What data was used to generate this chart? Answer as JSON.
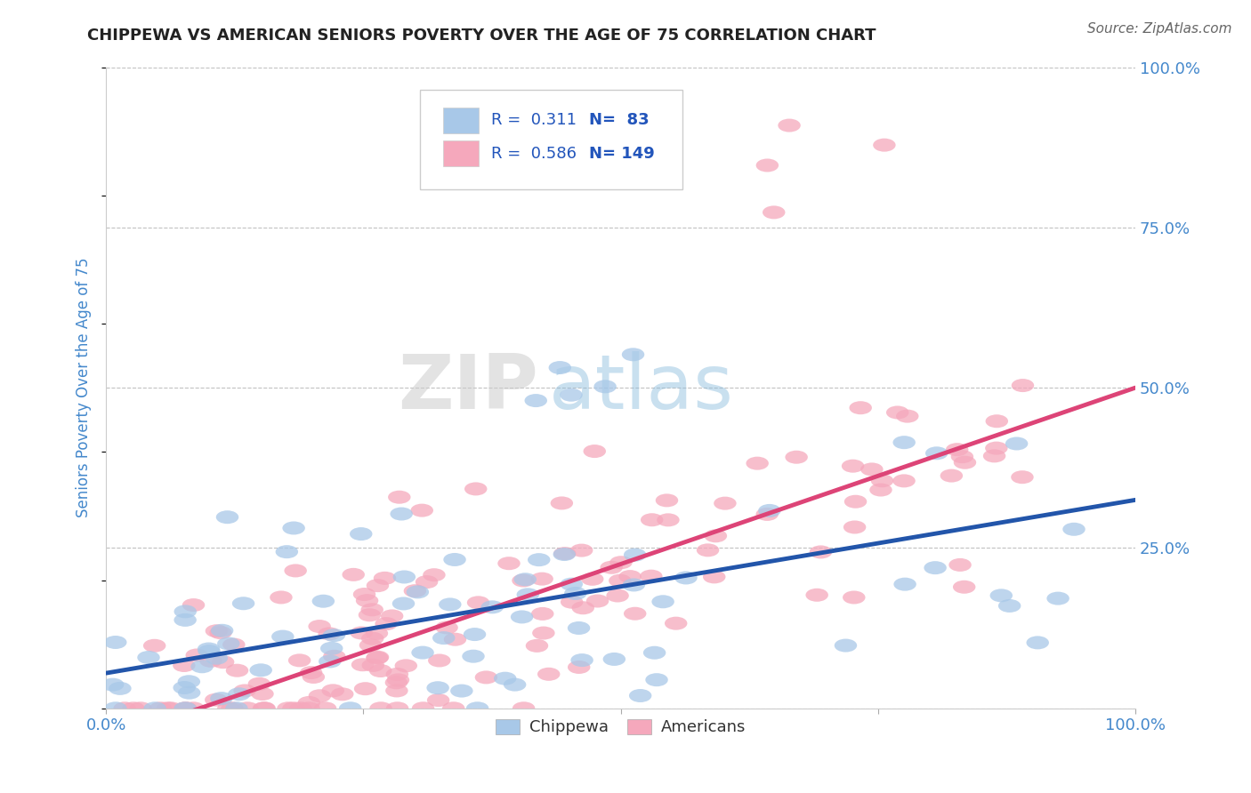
{
  "title": "CHIPPEWA VS AMERICAN SENIORS POVERTY OVER THE AGE OF 75 CORRELATION CHART",
  "source": "Source: ZipAtlas.com",
  "ylabel": "Seniors Poverty Over the Age of 75",
  "chippewa_R": 0.311,
  "chippewa_N": 83,
  "americans_R": 0.586,
  "americans_N": 149,
  "chippewa_color": "#a8c8e8",
  "americans_color": "#f5a8bc",
  "chippewa_line_color": "#2255aa",
  "americans_line_color": "#dd4477",
  "background_color": "#ffffff",
  "title_color": "#222222",
  "axis_label_color": "#4488cc",
  "legend_text_color": "#2255bb",
  "watermark_zip_color": "#cccccc",
  "watermark_atlas_color": "#88bbdd",
  "xlim": [
    0,
    1
  ],
  "ylim": [
    0,
    1
  ],
  "xticks": [
    0,
    0.25,
    0.5,
    0.75,
    1.0
  ],
  "yticks": [
    0.0,
    0.25,
    0.5,
    0.75,
    1.0
  ],
  "xticklabels": [
    "0.0%",
    "",
    "",
    "",
    "100.0%"
  ],
  "yticklabels": [
    "",
    "25.0%",
    "50.0%",
    "75.0%",
    "100.0%"
  ],
  "grid_color": "#bbbbbb",
  "grid_style": "--",
  "chippewa_line_intercept": 0.055,
  "chippewa_line_slope": 0.27,
  "americans_line_intercept": -0.05,
  "americans_line_slope": 0.55
}
